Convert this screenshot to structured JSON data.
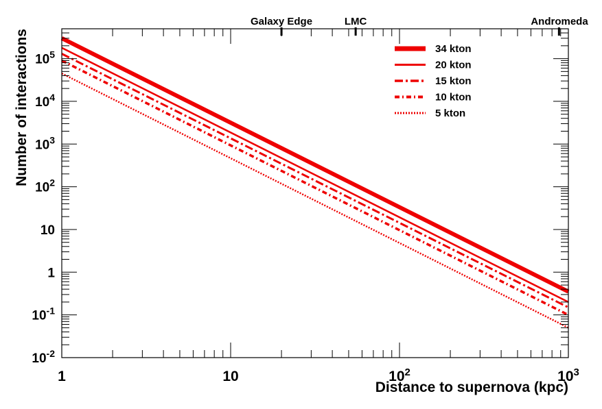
{
  "chart_data": {
    "type": "line",
    "xscale": "log",
    "yscale": "log",
    "xlim": [
      1,
      1000
    ],
    "ylim": [
      0.01,
      500000
    ],
    "xlabel": "Distance to supernova (kpc)",
    "ylabel": "Number of interactions",
    "grid": false,
    "legend_position": "top-right",
    "x_ticks": [
      {
        "value": 1,
        "base": "1",
        "exp": ""
      },
      {
        "value": 10,
        "base": "10",
        "exp": ""
      },
      {
        "value": 100,
        "base": "10",
        "exp": "2"
      },
      {
        "value": 1000,
        "base": "10",
        "exp": "3"
      }
    ],
    "y_ticks": [
      {
        "value": 0.01,
        "base": "10",
        "exp": "-2"
      },
      {
        "value": 0.1,
        "base": "10",
        "exp": "-1"
      },
      {
        "value": 1,
        "base": "1",
        "exp": ""
      },
      {
        "value": 10,
        "base": "10",
        "exp": ""
      },
      {
        "value": 100,
        "base": "10",
        "exp": "2"
      },
      {
        "value": 1000,
        "base": "10",
        "exp": "3"
      },
      {
        "value": 10000,
        "base": "10",
        "exp": "4"
      },
      {
        "value": 100000,
        "base": "10",
        "exp": "5"
      }
    ],
    "top_markers": [
      {
        "label": "Galaxy Edge",
        "x": 20
      },
      {
        "label": "LMC",
        "x": 55
      },
      {
        "label": "Andromeda",
        "x": 880
      }
    ],
    "series": [
      {
        "name": "34 kton",
        "x": [
          1,
          1000
        ],
        "y": [
          300000,
          0.35
        ],
        "color": "#ee0000",
        "style": "solid-thick"
      },
      {
        "name": "20 kton",
        "x": [
          1,
          1000
        ],
        "y": [
          180000,
          0.2
        ],
        "color": "#ee0000",
        "style": "solid"
      },
      {
        "name": "15 kton",
        "x": [
          1,
          1000
        ],
        "y": [
          130000,
          0.15
        ],
        "color": "#ee0000",
        "style": "dashdot"
      },
      {
        "name": "10 kton",
        "x": [
          1,
          1000
        ],
        "y": [
          90000,
          0.1
        ],
        "color": "#ee0000",
        "style": "dashdot-short"
      },
      {
        "name": "5 kton",
        "x": [
          1,
          1000
        ],
        "y": [
          45000,
          0.05
        ],
        "color": "#ee0000",
        "style": "dotted"
      }
    ]
  }
}
